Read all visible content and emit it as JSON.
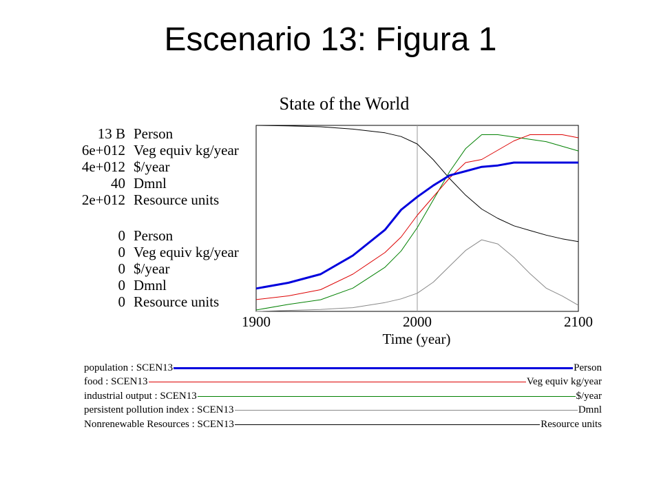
{
  "slide": {
    "title": "Escenario 13: Figura 1"
  },
  "chart_data": {
    "type": "line",
    "title": "State of the World",
    "xlabel": "Time (year)",
    "xlim": [
      1900,
      2100
    ],
    "x_ticks": [
      "1900",
      "2000",
      "2100"
    ],
    "grid": "vertical line at 2000",
    "legend": "bottom",
    "scales_top": [
      {
        "value": "13 B",
        "unit": "Person"
      },
      {
        "value": "6e+012",
        "unit": "Veg equiv kg/year"
      },
      {
        "value": "4e+012",
        "unit": "$/year"
      },
      {
        "value": "40",
        "unit": "Dmnl"
      },
      {
        "value": "2e+012",
        "unit": "Resource units"
      }
    ],
    "scales_bottom": [
      {
        "value": "0",
        "unit": "Person"
      },
      {
        "value": "0",
        "unit": "Veg equiv kg/year"
      },
      {
        "value": "0",
        "unit": "$/year"
      },
      {
        "value": "0",
        "unit": "Dmnl"
      },
      {
        "value": "0",
        "unit": "Resource units"
      }
    ],
    "x": [
      1900,
      1920,
      1940,
      1960,
      1980,
      1990,
      2000,
      2010,
      2020,
      2030,
      2040,
      2050,
      2060,
      2070,
      2080,
      2090,
      2100
    ],
    "series": [
      {
        "name": "population : SCEN13",
        "unit": "Person",
        "color": "#0000dd",
        "width": 3,
        "ymax": 13000000000,
        "values": [
          1600000000.0,
          2000000000.0,
          2600000000.0,
          3900000000.0,
          5700000000.0,
          7100000000.0,
          8000000000.0,
          8800000000.0,
          9500000000.0,
          9800000000.0,
          10100000000.0,
          10200000000.0,
          10400000000.0,
          10400000000.0,
          10400000000.0,
          10400000000.0,
          10400000000.0
        ]
      },
      {
        "name": "food : SCEN13",
        "unit": "Veg equiv kg/year",
        "color": "#dd0000",
        "width": 1,
        "ymax": 6000000000000.0,
        "values": [
          380000000000.0,
          500000000000.0,
          700000000000.0,
          1200000000000.0,
          1900000000000.0,
          2400000000000.0,
          3100000000000.0,
          3700000000000.0,
          4300000000000.0,
          4800000000000.0,
          4900000000000.0,
          5200000000000.0,
          5500000000000.0,
          5700000000000.0,
          5700000000000.0,
          5700000000000.0,
          5600000000000.0
        ]
      },
      {
        "name": "industrial output : SCEN13",
        "unit": "$/year",
        "color": "#008000",
        "width": 1,
        "ymax": 4000000000000.0,
        "values": [
          30000000000.0,
          150000000000.0,
          250000000000.0,
          500000000000.0,
          950000000000.0,
          1300000000000.0,
          1800000000000.0,
          2400000000000.0,
          3000000000000.0,
          3500000000000.0,
          3800000000000.0,
          3800000000000.0,
          3750000000000.0,
          3700000000000.0,
          3650000000000.0,
          3550000000000.0,
          3450000000000.0
        ]
      },
      {
        "name": "persistent pollution index : SCEN13",
        "unit": "Dmnl",
        "color": "#888888",
        "width": 1,
        "ymax": 40,
        "values": [
          0,
          0.2,
          0.4,
          0.8,
          1.9,
          2.7,
          3.9,
          6.3,
          9.7,
          13.1,
          15.4,
          14.5,
          11.6,
          8.1,
          5.0,
          3.3,
          1.3
        ]
      },
      {
        "name": "Nonrenewable Resources : SCEN13",
        "unit": "Resource units",
        "color": "#000000",
        "width": 1,
        "ymax": 2000000000000.0,
        "values": [
          2000000000000.0,
          1995000000000.0,
          1985000000000.0,
          1960000000000.0,
          1920000000000.0,
          1880000000000.0,
          1800000000000.0,
          1630000000000.0,
          1430000000000.0,
          1250000000000.0,
          1100000000000.0,
          1000000000000.0,
          920000000000.0,
          870000000000.0,
          820000000000.0,
          780000000000.0,
          750000000000.0
        ]
      }
    ]
  }
}
